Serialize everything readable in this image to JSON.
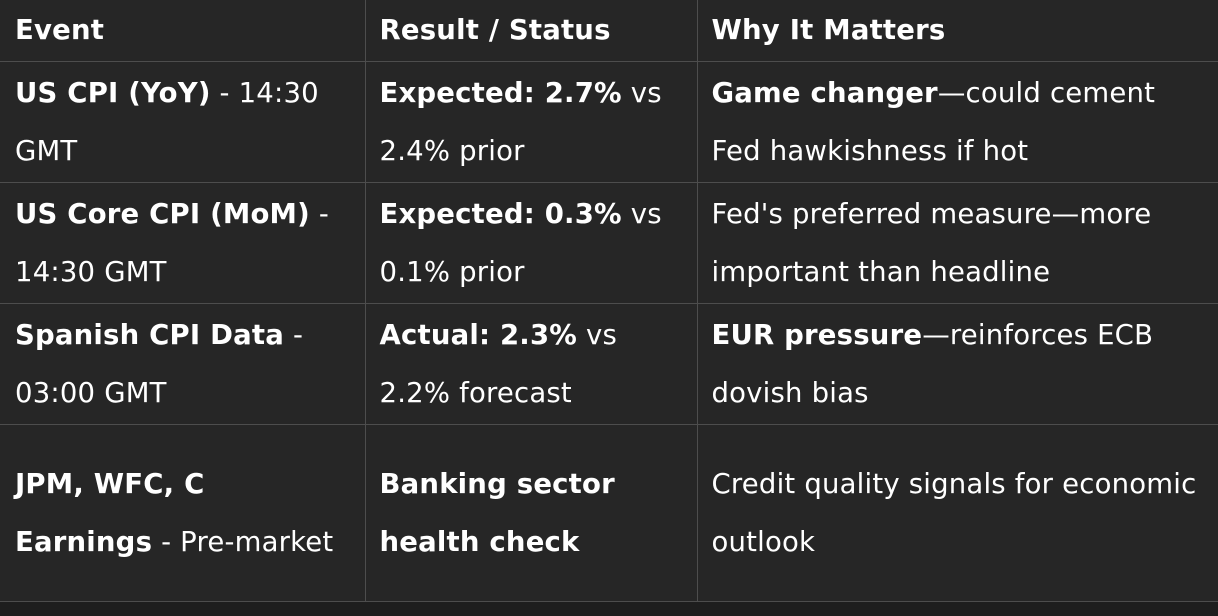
{
  "table": {
    "headers": [
      "Event",
      "Result / Status",
      "Why It Matters"
    ],
    "rows": [
      {
        "event": {
          "bold": "US CPI (YoY)",
          "normal": " - 14:30 GMT"
        },
        "result": {
          "bold": "Expected: 2.7%",
          "normal": " vs 2.4% prior"
        },
        "why": {
          "bold": "Game changer",
          "normal": "—could cement Fed hawkishness if hot"
        }
      },
      {
        "event": {
          "bold": "US Core CPI (MoM)",
          "normal": " - 14:30 GMT"
        },
        "result": {
          "bold": "Expected: 0.3%",
          "normal": " vs 0.1% prior"
        },
        "why": {
          "bold": "",
          "normal": "Fed's preferred measure—more important than headline"
        }
      },
      {
        "event": {
          "bold": "Spanish CPI Data",
          "normal": " - 03:00 GMT"
        },
        "result": {
          "bold": "Actual: 2.3%",
          "normal": " vs 2.2% forecast"
        },
        "why": {
          "bold": "EUR pressure",
          "normal": "—reinforces ECB dovish bias"
        }
      },
      {
        "event": {
          "bold": "JPM, WFC, C Earnings",
          "normal": " - Pre-market"
        },
        "result": {
          "bold": "Banking sector health check",
          "normal": ""
        },
        "why": {
          "bold": "",
          "normal": "Credit quality signals for economic outlook"
        }
      }
    ]
  }
}
